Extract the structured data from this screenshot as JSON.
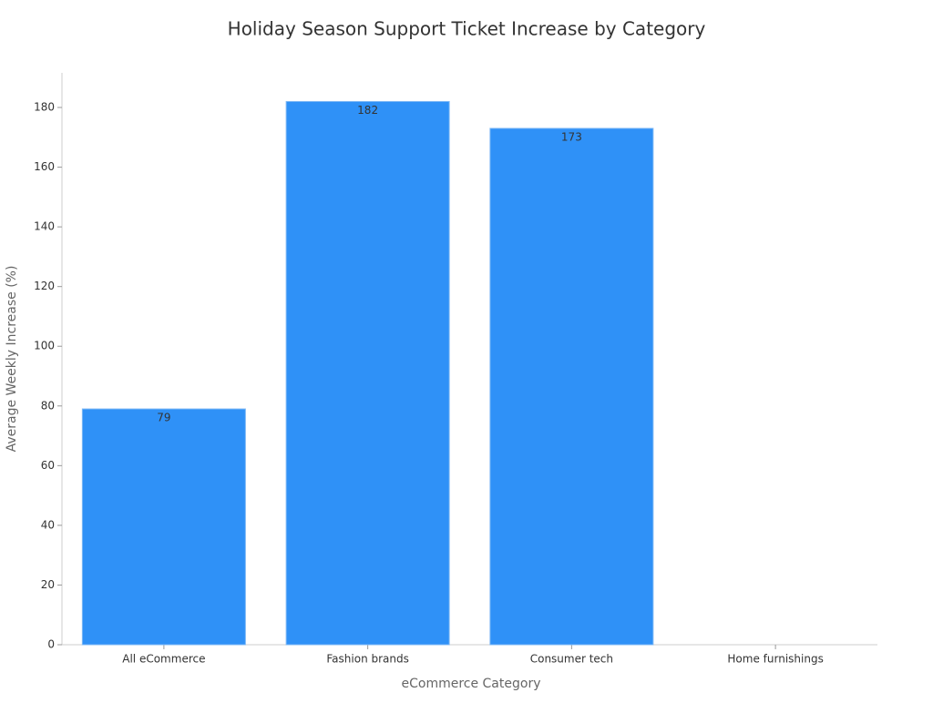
{
  "chart_data": {
    "type": "bar",
    "title": "Holiday Season Support Ticket Increase by Category",
    "x_label": "eCommerce Category",
    "y_label": "Average Weekly Increase (%)",
    "categories": [
      "All eCommerce",
      "Fashion brands",
      "Consumer tech",
      "Home furnishings"
    ],
    "values": [
      79,
      182,
      173,
      null
    ],
    "color": "#2f91f7",
    "ylim": [
      0,
      191.6
    ],
    "yticks": [
      0,
      20,
      40,
      60,
      80,
      100,
      120,
      140,
      160,
      180
    ],
    "grid": false
  }
}
